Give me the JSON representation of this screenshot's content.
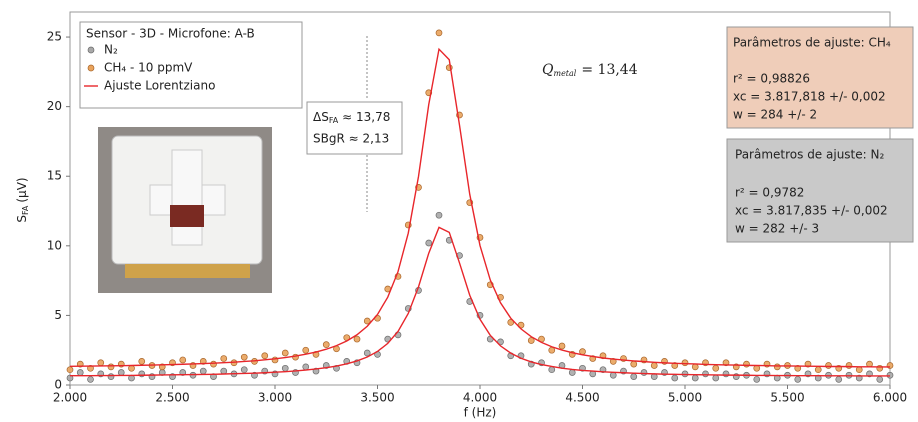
{
  "chart_data": {
    "type": "scatter",
    "xlabel": "f (Hz)",
    "ylabel": [
      "S",
      "FA",
      "(μV)"
    ],
    "xlim": [
      2000,
      6000
    ],
    "ylim": [
      0,
      26.8
    ],
    "xticks": [
      {
        "value": 2000,
        "label": "2.000"
      },
      {
        "value": 2500,
        "label": "2.500"
      },
      {
        "value": 3000,
        "label": "3.000"
      },
      {
        "value": 3500,
        "label": "3.500"
      },
      {
        "value": 4000,
        "label": "4.000"
      },
      {
        "value": 4500,
        "label": "4.500"
      },
      {
        "value": 5000,
        "label": "5.000"
      },
      {
        "value": 5500,
        "label": "5.500"
      },
      {
        "value": 6000,
        "label": "6.000"
      }
    ],
    "yticks": [
      0,
      5,
      10,
      15,
      20,
      25
    ],
    "grid": false,
    "legend_title": "Sensor - 3D - Microfone: A-B",
    "x": [
      2000,
      2050,
      2100,
      2150,
      2200,
      2250,
      2300,
      2350,
      2400,
      2450,
      2500,
      2550,
      2600,
      2650,
      2700,
      2750,
      2800,
      2850,
      2900,
      2950,
      3000,
      3050,
      3100,
      3150,
      3200,
      3250,
      3300,
      3350,
      3400,
      3450,
      3500,
      3550,
      3600,
      3650,
      3700,
      3750,
      3800,
      3850,
      3900,
      3950,
      4000,
      4050,
      4100,
      4150,
      4200,
      4250,
      4300,
      4350,
      4400,
      4450,
      4500,
      4550,
      4600,
      4650,
      4700,
      4750,
      4800,
      4850,
      4900,
      4950,
      5000,
      5050,
      5100,
      5150,
      5200,
      5250,
      5300,
      5350,
      5400,
      5450,
      5500,
      5550,
      5600,
      5650,
      5700,
      5750,
      5800,
      5850,
      5900,
      5950,
      6000
    ],
    "series": [
      {
        "name": "N₂",
        "type": "scatter",
        "color": "#a8a8a8",
        "edge": "#6a6a6a",
        "values": [
          0.5,
          0.9,
          0.4,
          0.8,
          0.6,
          0.9,
          0.5,
          0.8,
          0.6,
          0.9,
          0.6,
          0.9,
          0.7,
          1.0,
          0.6,
          1.0,
          0.8,
          1.1,
          0.7,
          1.0,
          0.8,
          1.2,
          0.9,
          1.3,
          1.0,
          1.4,
          1.2,
          1.7,
          1.6,
          2.3,
          2.2,
          3.3,
          3.6,
          5.5,
          6.8,
          10.2,
          12.2,
          10.4,
          9.3,
          6.0,
          5.0,
          3.3,
          3.1,
          2.1,
          2.1,
          1.5,
          1.6,
          1.1,
          1.4,
          0.9,
          1.2,
          0.8,
          1.1,
          0.7,
          1.0,
          0.6,
          0.9,
          0.6,
          0.9,
          0.5,
          0.8,
          0.5,
          0.8,
          0.5,
          0.8,
          0.6,
          0.7,
          0.4,
          0.8,
          0.5,
          0.7,
          0.4,
          0.8,
          0.5,
          0.7,
          0.4,
          0.7,
          0.5,
          0.8,
          0.4,
          0.7
        ]
      },
      {
        "name": "CH₄ - 10 ppmV",
        "type": "scatter",
        "color": "#e9a35c",
        "edge": "#a8652a",
        "values": [
          1.1,
          1.5,
          1.2,
          1.6,
          1.3,
          1.5,
          1.2,
          1.7,
          1.4,
          1.3,
          1.6,
          1.8,
          1.4,
          1.7,
          1.5,
          1.9,
          1.6,
          2.0,
          1.7,
          2.1,
          1.8,
          2.3,
          2.0,
          2.5,
          2.2,
          2.9,
          2.6,
          3.4,
          3.3,
          4.6,
          4.8,
          6.9,
          7.8,
          11.5,
          14.2,
          21.0,
          25.3,
          22.8,
          19.4,
          13.1,
          10.6,
          7.2,
          6.3,
          4.5,
          4.3,
          3.2,
          3.3,
          2.5,
          2.8,
          2.2,
          2.4,
          1.9,
          2.1,
          1.7,
          1.9,
          1.5,
          1.8,
          1.4,
          1.7,
          1.4,
          1.6,
          1.3,
          1.6,
          1.2,
          1.6,
          1.3,
          1.5,
          1.2,
          1.5,
          1.3,
          1.4,
          1.2,
          1.5,
          1.1,
          1.4,
          1.2,
          1.4,
          1.1,
          1.5,
          1.2,
          1.4
        ]
      },
      {
        "name": "Ajuste Lorentziano",
        "type": "line",
        "color": "#e8262b",
        "values": [
          1.34,
          1.35,
          1.36,
          1.37,
          1.38,
          1.39,
          1.4,
          1.42,
          1.43,
          1.45,
          1.47,
          1.49,
          1.51,
          1.54,
          1.57,
          1.6,
          1.64,
          1.69,
          1.74,
          1.81,
          1.88,
          1.97,
          2.08,
          2.21,
          2.37,
          2.57,
          2.83,
          3.16,
          3.61,
          4.22,
          5.07,
          6.31,
          8.14,
          10.91,
          14.98,
          20.15,
          24.13,
          23.37,
          18.67,
          13.7,
          10.02,
          7.55,
          5.91,
          4.8,
          4.03,
          3.47,
          3.06,
          2.75,
          2.51,
          2.32,
          2.17,
          2.05,
          1.94,
          1.86,
          1.79,
          1.73,
          1.68,
          1.63,
          1.59,
          1.56,
          1.53,
          1.51,
          1.48,
          1.46,
          1.44,
          1.43,
          1.41,
          1.4,
          1.39,
          1.37,
          1.37,
          1.36,
          1.35,
          1.34,
          1.33,
          1.33,
          1.32,
          1.31,
          1.31,
          1.3,
          1.3
        ]
      },
      {
        "type": "line",
        "color": "#e8262b",
        "values": [
          0.67,
          0.67,
          0.67,
          0.68,
          0.68,
          0.69,
          0.69,
          0.7,
          0.71,
          0.72,
          0.73,
          0.74,
          0.75,
          0.76,
          0.77,
          0.79,
          0.81,
          0.83,
          0.85,
          0.88,
          0.92,
          0.96,
          1.01,
          1.07,
          1.15,
          1.24,
          1.36,
          1.52,
          1.73,
          2.01,
          2.41,
          2.99,
          3.85,
          5.14,
          7.05,
          9.47,
          11.33,
          10.97,
          8.77,
          6.45,
          4.72,
          3.57,
          2.81,
          2.29,
          1.92,
          1.66,
          1.47,
          1.33,
          1.21,
          1.12,
          1.05,
          1.0,
          0.95,
          0.91,
          0.88,
          0.85,
          0.82,
          0.8,
          0.78,
          0.77,
          0.75,
          0.74,
          0.73,
          0.72,
          0.71,
          0.71,
          0.7,
          0.69,
          0.69,
          0.68,
          0.68,
          0.67,
          0.67,
          0.67,
          0.66,
          0.66,
          0.66,
          0.65,
          0.65,
          0.65,
          0.65
        ]
      }
    ],
    "annotations": {
      "delta": [
        "ΔS",
        "FA",
        "≈ 13,78"
      ],
      "sbgr": "SBgR ≈ 2,13",
      "q": [
        "Q",
        "metal",
        "= 13,44"
      ]
    },
    "fit_boxes": [
      {
        "title": "Parâmetros de ajuste: CH₄",
        "lines": [
          "r² = 0,98826",
          "xc = 3.817,818 +/- 0,002",
          "w = 284 +/- 2"
        ]
      },
      {
        "title": "Parâmetros de ajuste: N₂",
        "lines": [
          "r² = 0,9782",
          "xc = 3.817,835 +/- 0,002",
          "w = 282 +/- 3"
        ]
      }
    ]
  }
}
